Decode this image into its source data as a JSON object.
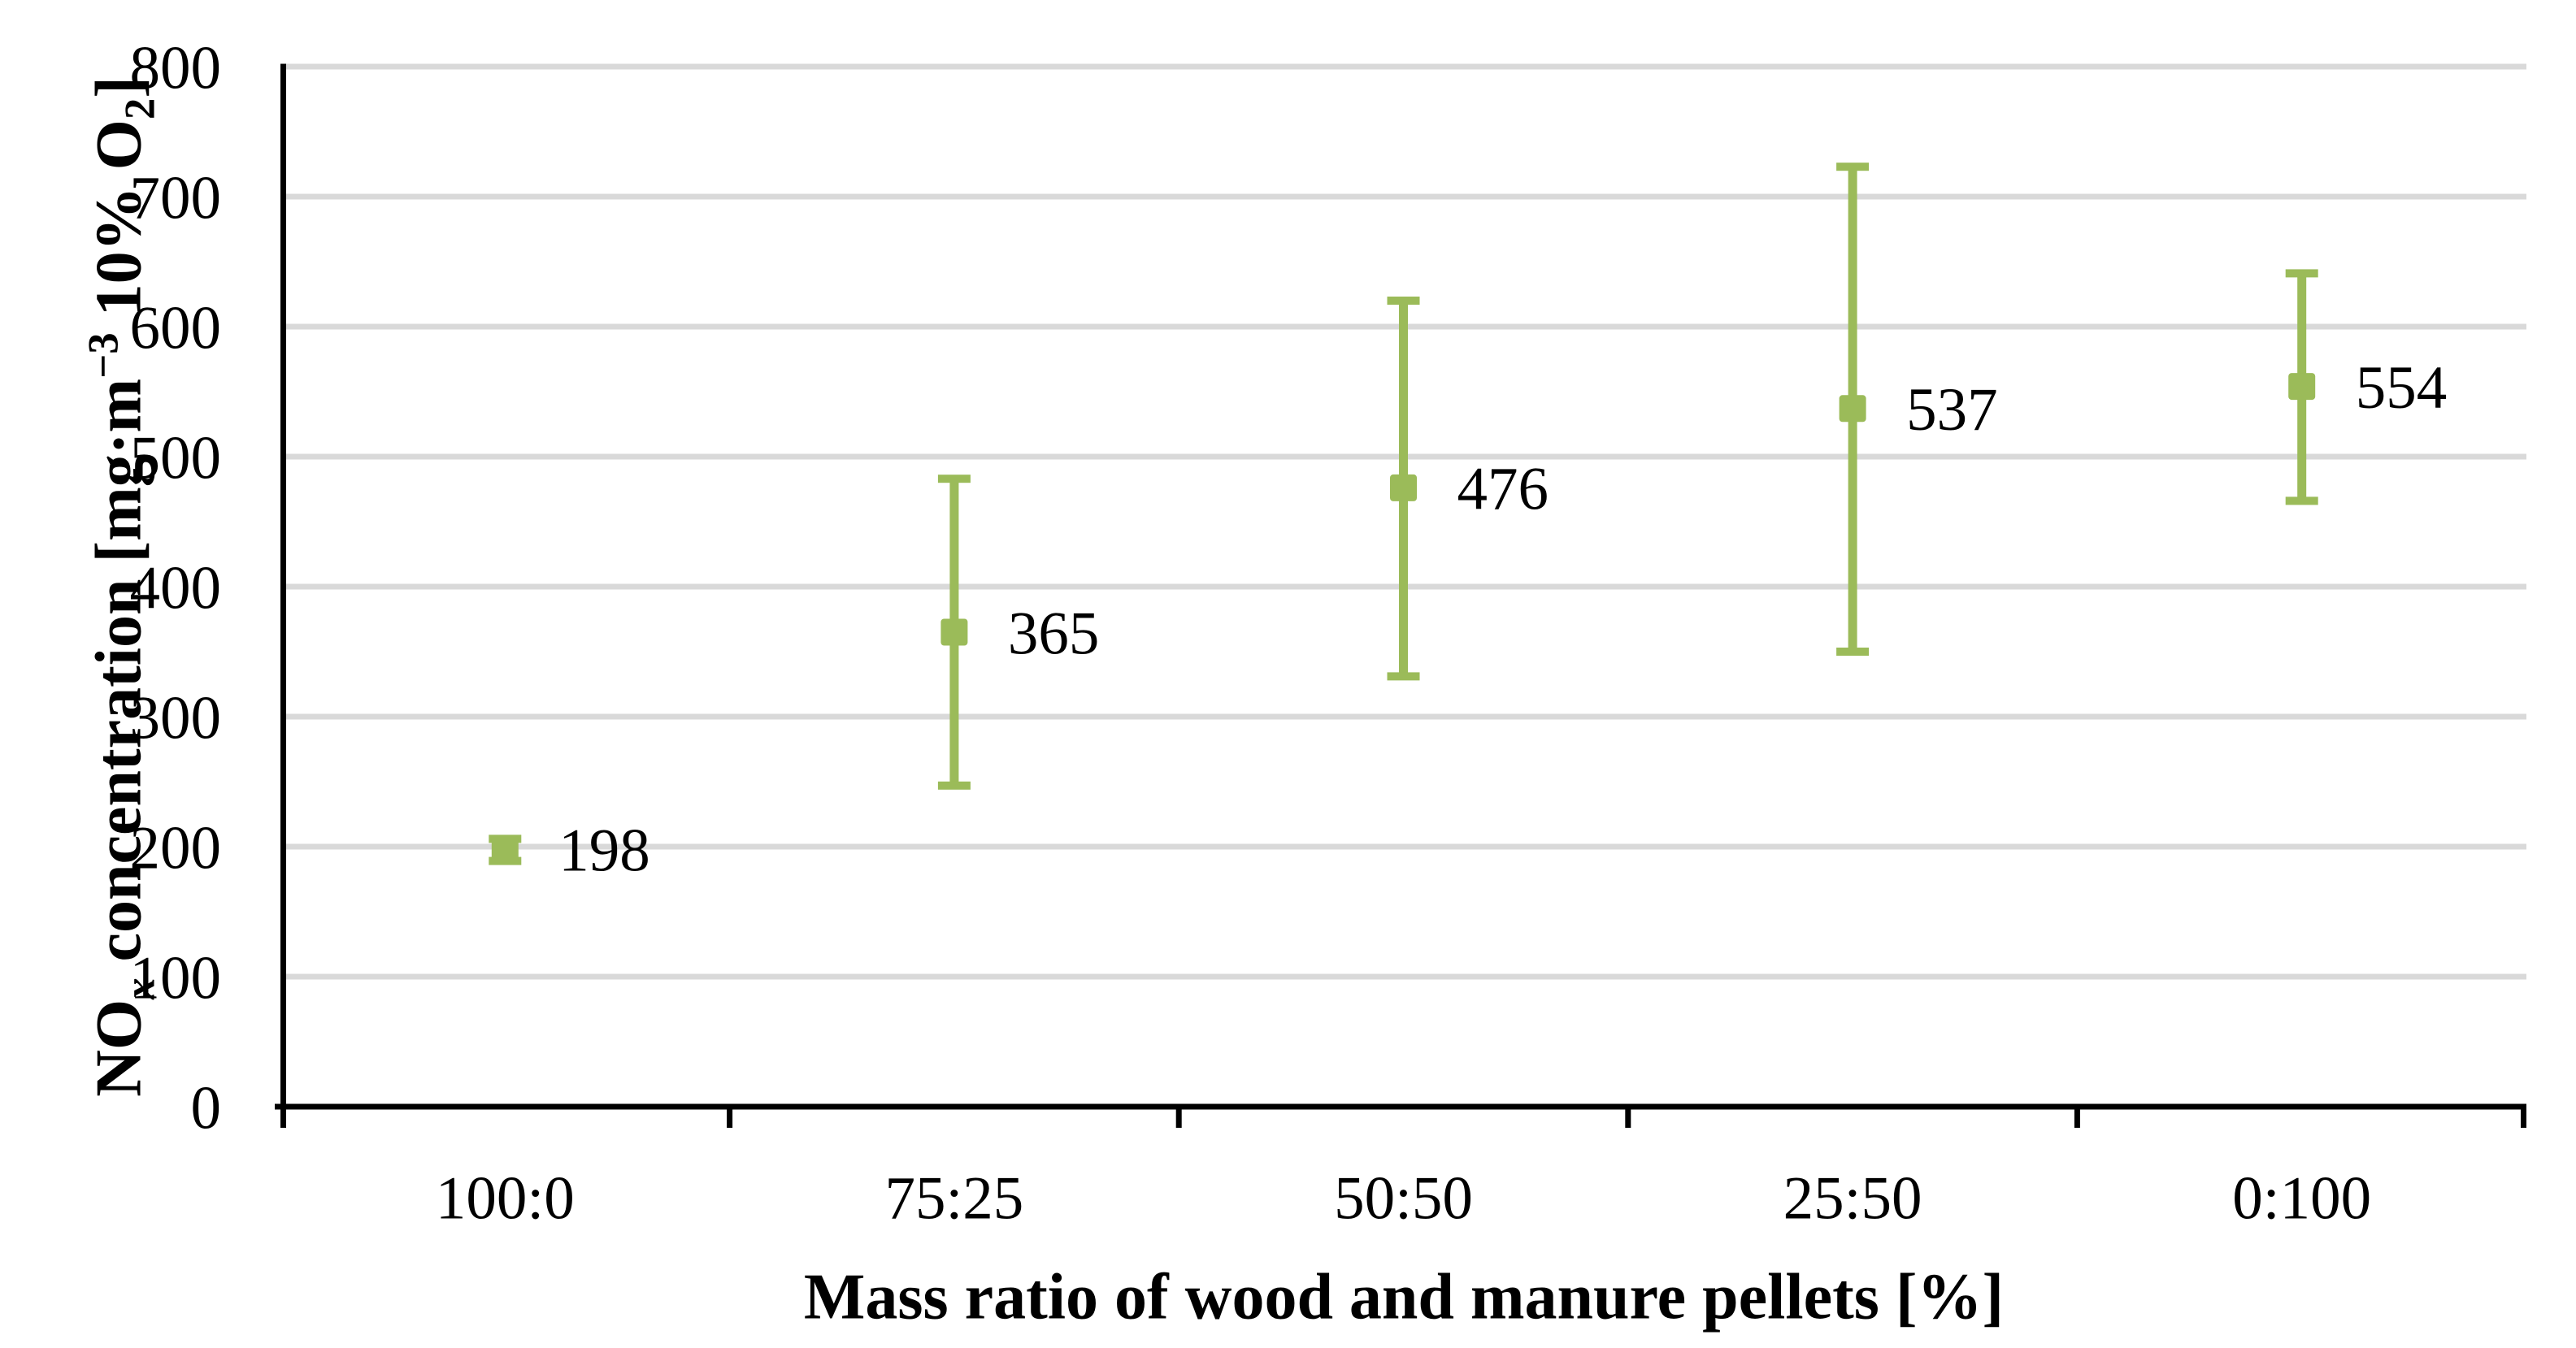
{
  "chart_data": {
    "type": "scatter",
    "subtype": "points-with-error-bars",
    "title": "",
    "xlabel": "Mass ratio of wood and manure pellets [%]",
    "ylabel": "NOx concentration [mg·m−3 10% O2]",
    "ylabel_runs": [
      {
        "t": "NO",
        "s": "n"
      },
      {
        "t": "x",
        "s": "subi"
      },
      {
        "t": " concentration [mg·m",
        "s": "n"
      },
      {
        "t": "−3",
        "s": "sup"
      },
      {
        "t": " 10% O",
        "s": "n"
      },
      {
        "t": "2",
        "s": "sub"
      },
      {
        "t": "]",
        "s": "n"
      }
    ],
    "categories": [
      "100:0",
      "75:25",
      "50:50",
      "25:50",
      "0:100"
    ],
    "values": [
      198,
      365,
      476,
      537,
      554
    ],
    "data_labels": [
      "198",
      "365",
      "476",
      "537",
      "554"
    ],
    "error_low_bound": [
      189,
      247,
      331,
      350,
      466
    ],
    "error_high_bound": [
      206,
      483,
      620,
      723,
      641
    ],
    "ylim": [
      0,
      800
    ],
    "yticks": [
      0,
      100,
      200,
      300,
      400,
      500,
      600,
      700,
      800
    ],
    "grid": "horizontal",
    "legend": "none",
    "marker": "square",
    "series_color": "#9BBB59",
    "gridline_color": "#D9D9D9",
    "axis_color": "#000000"
  }
}
